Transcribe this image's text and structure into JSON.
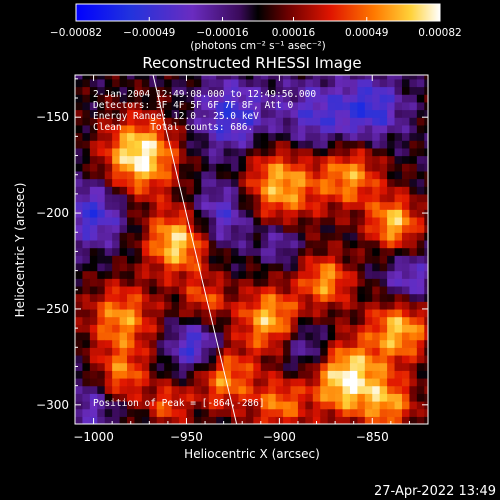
{
  "chart_data": {
    "type": "heatmap",
    "title": "Reconstructed RHESSI Image",
    "xlabel": "Heliocentric X (arcsec)",
    "ylabel": "Heliocentric Y (arcsec)",
    "xlim": [
      -1010,
      -820
    ],
    "ylim": [
      -310,
      -128
    ],
    "x_ticks": [
      -1000,
      -950,
      -900,
      -850
    ],
    "x_tick_labels": [
      "−1000",
      "−950",
      "−900",
      "−850"
    ],
    "y_ticks": [
      -300,
      -250,
      -200,
      -150
    ],
    "y_tick_labels": [
      "−300",
      "−250",
      "−200",
      "−150"
    ],
    "colorbar": {
      "ticks": [
        -0.00082,
        -0.00049,
        -0.00016,
        0.00016,
        0.00049,
        0.00082
      ],
      "tick_labels": [
        "−0.00082",
        "−0.00049",
        "−0.00016",
        "0.00016",
        "0.00049",
        "0.00082"
      ],
      "unit_label": "(photons cm⁻² s⁻¹ asec⁻²)",
      "range": [
        -0.00082,
        0.00082
      ]
    },
    "annotations": [
      "2-Jan-2004 12:49:08.000 to 12:49:56.000",
      "Detectors: 3F 4F 5F 6F 7F 8F, Att 0",
      "Energy Range: 12.0 - 25.0 keV",
      "Clean     Total counts: 686."
    ],
    "peak_label": "Position of Peak = [-864,-286]",
    "peak": [
      -864,
      -286
    ],
    "limb_line": [
      [
        -968,
        -128
      ],
      [
        -923,
        -310
      ]
    ],
    "grid": false,
    "colormap": "RHESSI red/yellow-blue",
    "pixel_size_arcsec": 4,
    "intensity_note": "intensity field approximated; values in colorbar range"
  },
  "footer": {
    "timestamp": "27-Apr-2022 13:49"
  }
}
